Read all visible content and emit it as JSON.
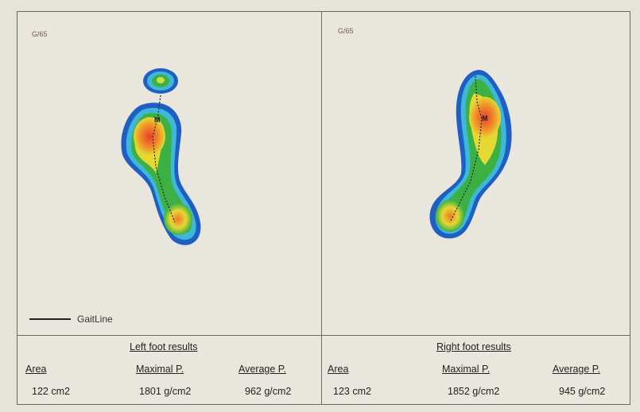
{
  "left_panel": {
    "code": "G/65"
  },
  "right_panel": {
    "code": "G/65"
  },
  "legend": {
    "label": "GaitLine"
  },
  "left_results": {
    "title": "Left foot results",
    "area_label": "Area",
    "max_label": "Maximal P.",
    "avg_label": "Average P.",
    "area_value": "122 cm2",
    "max_value": "1801 g/cm2",
    "avg_value": "962 g/cm2"
  },
  "right_results": {
    "title": "Right foot results",
    "area_label": "Area",
    "max_label": "Maximal P.",
    "avg_label": "Average P.",
    "area_value": "123 cm2",
    "max_value": "1852 g/cm2",
    "avg_value": "945 g/cm2"
  },
  "colors": {
    "outer": "#1f5fc4",
    "cyan": "#3fb8d8",
    "green": "#3cb043",
    "yellow": "#e6d832",
    "orange": "#f0902a",
    "red": "#e8402c"
  }
}
